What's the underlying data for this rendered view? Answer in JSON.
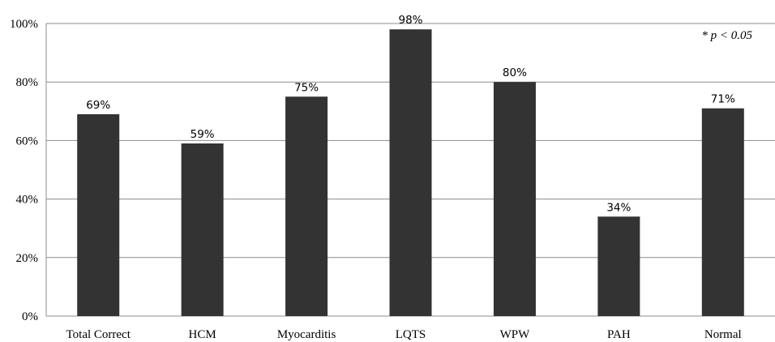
{
  "chart_data": {
    "type": "bar",
    "categories": [
      "Total Correct",
      "HCM",
      "Myocarditis",
      "LQTS",
      "WPW",
      "PAH",
      "Normal"
    ],
    "values": [
      69,
      59,
      75,
      98,
      80,
      34,
      71
    ],
    "data_labels": [
      "69%",
      "59%",
      "75%",
      "98%",
      "80%",
      "34%",
      "71%"
    ],
    "ylim": [
      0,
      100
    ],
    "yticks": [
      0,
      20,
      40,
      60,
      80,
      100
    ],
    "ytick_labels": [
      "0%",
      "20%",
      "40%",
      "60%",
      "80%",
      "100%"
    ],
    "grid": true,
    "bar_color": "#333333",
    "annotation": "* p < 0.05"
  }
}
